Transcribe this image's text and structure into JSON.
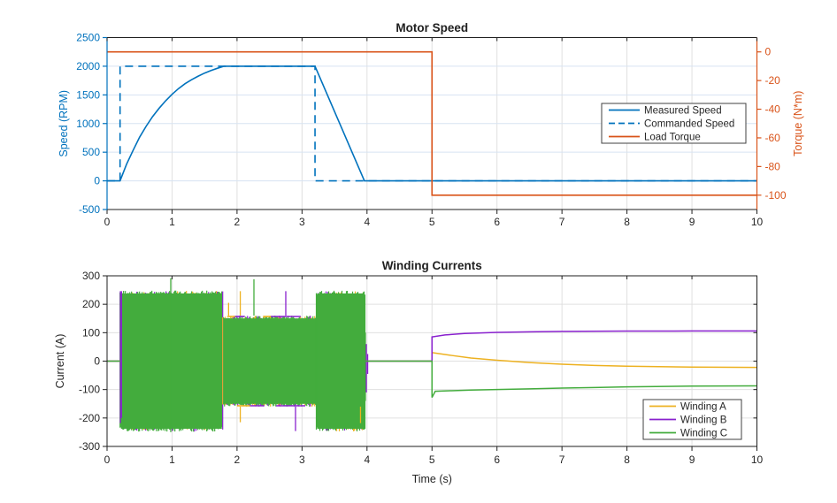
{
  "figure": {
    "background": "#ffffff"
  },
  "palette": {
    "blue": "#0072BD",
    "orange": "#D95319",
    "amber": "#EDB120",
    "purple": "#8920CE",
    "green": "#43AC3D",
    "axis_dark": "#1f1f1f",
    "text_dark": "#262626",
    "grid_gray": "#e0e0e0",
    "grid_blue": "#d7e3f2",
    "legend_border": "#404040"
  },
  "chart_data": [
    {
      "type": "line",
      "title": "Motor Speed",
      "xlim": [
        0,
        10
      ],
      "xticks": [
        0,
        1,
        2,
        3,
        4,
        5,
        6,
        7,
        8,
        9,
        10
      ],
      "grid": true,
      "legend_position": "northeast",
      "left_axis": {
        "label": "Speed (RPM)",
        "color": "#0072BD",
        "lim": [
          -500,
          2500
        ],
        "ticks": [
          -500,
          0,
          500,
          1000,
          1500,
          2000,
          2500
        ]
      },
      "right_axis": {
        "label": "Torque (N*m)",
        "color": "#D95319",
        "lim": [
          -110,
          10
        ],
        "ticks": [
          -100,
          -80,
          -60,
          -40,
          -20,
          0
        ]
      },
      "series": [
        {
          "name": "Measured Speed",
          "axis": "left",
          "style": "solid",
          "color": "#0072BD",
          "points": [
            [
              0,
              0
            ],
            [
              0.2,
              0
            ],
            [
              0.3,
              290
            ],
            [
              0.4,
              530
            ],
            [
              0.5,
              760
            ],
            [
              0.6,
              950
            ],
            [
              0.7,
              1120
            ],
            [
              0.8,
              1265
            ],
            [
              0.9,
              1395
            ],
            [
              1.0,
              1510
            ],
            [
              1.1,
              1610
            ],
            [
              1.2,
              1695
            ],
            [
              1.3,
              1765
            ],
            [
              1.4,
              1825
            ],
            [
              1.5,
              1880
            ],
            [
              1.6,
              1925
            ],
            [
              1.7,
              1965
            ],
            [
              1.8,
              2000
            ],
            [
              3.2,
              2000
            ],
            [
              3.96,
              0
            ],
            [
              10,
              0
            ]
          ]
        },
        {
          "name": "Commanded Speed",
          "axis": "left",
          "style": "dashed",
          "color": "#0072BD",
          "points": [
            [
              0,
              0
            ],
            [
              0.2,
              0
            ],
            [
              0.2,
              2000
            ],
            [
              3.2,
              2000
            ],
            [
              3.2,
              0
            ],
            [
              10,
              0
            ]
          ]
        },
        {
          "name": "Load Torque",
          "axis": "right",
          "style": "solid",
          "color": "#D95319",
          "points": [
            [
              0,
              0
            ],
            [
              5,
              0
            ],
            [
              5,
              -100
            ],
            [
              10,
              -100
            ]
          ]
        }
      ]
    },
    {
      "type": "line",
      "title": "Winding Currents",
      "xlabel": "Time (s)",
      "ylabel": "Current (A)",
      "xlim": [
        0,
        10
      ],
      "ylim": [
        -300,
        300
      ],
      "xticks": [
        0,
        1,
        2,
        3,
        4,
        5,
        6,
        7,
        8,
        9,
        10
      ],
      "yticks": [
        -300,
        -200,
        -100,
        0,
        100,
        200,
        300
      ],
      "grid": true,
      "legend_position": "southeast",
      "pwm_bands": [
        {
          "t_start": 0.2,
          "t_end": 1.78,
          "amplitude": 248
        },
        {
          "t_start": 1.78,
          "t_end": 3.22,
          "amplitude": 160
        },
        {
          "t_start": 3.22,
          "t_end": 3.97,
          "amplitude": 248
        }
      ],
      "band_color_weights": {
        "green": 0.7,
        "purple": 0.16,
        "amber": 0.14
      },
      "edge_lines": [
        {
          "t0": 1.85,
          "t1": 1.97,
          "y": 157,
          "color": "#EDB120"
        },
        {
          "t0": 1.97,
          "t1": 2.12,
          "y": 157,
          "color": "#8920CE"
        },
        {
          "t0": 2.4,
          "t1": 2.52,
          "y": 157,
          "color": "#EDB120"
        },
        {
          "t0": 2.52,
          "t1": 2.98,
          "y": 157,
          "color": "#8920CE"
        },
        {
          "t0": 2.0,
          "t1": 2.2,
          "y": -157,
          "color": "#EDB120"
        },
        {
          "t0": 2.2,
          "t1": 2.42,
          "y": -157,
          "color": "#8920CE"
        },
        {
          "t0": 2.6,
          "t1": 3.05,
          "y": -157,
          "color": "#8920CE"
        }
      ],
      "spikes": [
        {
          "t": 0.205,
          "y0": -218,
          "y1": 246,
          "color": "#8920CE"
        },
        {
          "t": 0.222,
          "y0": -200,
          "y1": 246,
          "color": "#8920CE"
        },
        {
          "t": 0.24,
          "y0": -218,
          "y1": 120,
          "color": "#43AC3D"
        },
        {
          "t": 0.98,
          "y0": -250,
          "y1": 292,
          "color": "#43AC3D"
        },
        {
          "t": 1.87,
          "y0": 160,
          "y1": 205,
          "color": "#EDB120"
        },
        {
          "t": 2.05,
          "y0": 160,
          "y1": 246,
          "color": "#EDB120"
        },
        {
          "t": 2.05,
          "y0": -215,
          "y1": -160,
          "color": "#EDB120"
        },
        {
          "t": 2.26,
          "y0": 160,
          "y1": 288,
          "color": "#43AC3D"
        },
        {
          "t": 2.75,
          "y0": 160,
          "y1": 246,
          "color": "#8920CE"
        },
        {
          "t": 2.9,
          "y0": -246,
          "y1": -160,
          "color": "#8920CE"
        },
        {
          "t": 3.9,
          "y0": -218,
          "y1": -160,
          "color": "#EDB120"
        },
        {
          "t": 3.975,
          "y0": -140,
          "y1": 100,
          "color": "#43AC3D"
        },
        {
          "t": 3.99,
          "y0": -110,
          "y1": 60,
          "color": "#8920CE"
        },
        {
          "t": 4.01,
          "y0": -45,
          "y1": 25,
          "color": "#8920CE"
        }
      ],
      "series": [
        {
          "name": "Winding A",
          "color": "#EDB120",
          "segments": [
            [
              [
                0,
                0
              ],
              [
                0.2,
                0
              ]
            ],
            [
              [
                3.97,
                0
              ],
              [
                5,
                0
              ],
              [
                5,
                30
              ],
              [
                5.3,
                20
              ],
              [
                5.6,
                11
              ],
              [
                6,
                3
              ],
              [
                6.5,
                -5
              ],
              [
                7,
                -11
              ],
              [
                7.5,
                -15
              ],
              [
                8,
                -18
              ],
              [
                9,
                -21
              ],
              [
                10,
                -22
              ]
            ]
          ]
        },
        {
          "name": "Winding B",
          "color": "#8920CE",
          "segments": [
            [
              [
                0,
                0
              ],
              [
                0.2,
                0
              ]
            ],
            [
              [
                3.97,
                0
              ],
              [
                5,
                0
              ],
              [
                5,
                85
              ],
              [
                5.2,
                92
              ],
              [
                5.5,
                97
              ],
              [
                6,
                101
              ],
              [
                6.5,
                103
              ],
              [
                7,
                104.5
              ],
              [
                8,
                105.5
              ],
              [
                9,
                106
              ],
              [
                10,
                106
              ]
            ]
          ]
        },
        {
          "name": "Winding C",
          "color": "#43AC3D",
          "segments": [
            [
              [
                0,
                0
              ],
              [
                0.2,
                0
              ]
            ],
            [
              [
                3.97,
                0
              ],
              [
                5,
                0
              ],
              [
                5,
                -128
              ],
              [
                5.05,
                -106
              ],
              [
                5.3,
                -104
              ],
              [
                5.6,
                -102
              ],
              [
                6,
                -100
              ],
              [
                6.5,
                -97.5
              ],
              [
                7,
                -95
              ],
              [
                7.5,
                -93
              ],
              [
                8,
                -90.5
              ],
              [
                9,
                -88
              ],
              [
                10,
                -87
              ]
            ]
          ]
        }
      ]
    }
  ]
}
